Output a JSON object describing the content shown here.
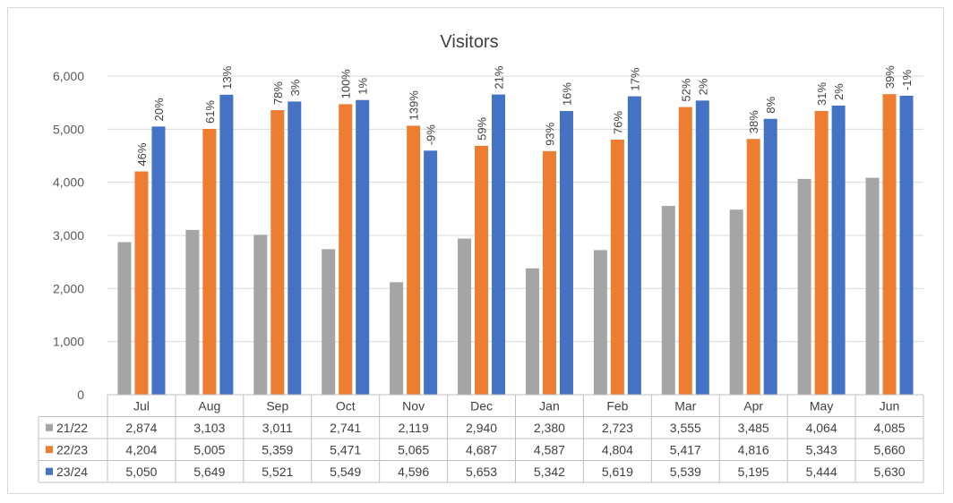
{
  "chart_data": {
    "type": "bar",
    "title": "Visitors",
    "categories": [
      "Jul",
      "Aug",
      "Sep",
      "Oct",
      "Nov",
      "Dec",
      "Jan",
      "Feb",
      "Mar",
      "Apr",
      "May",
      "Jun"
    ],
    "yticks": [
      "0",
      "1,000",
      "2,000",
      "3,000",
      "4,000",
      "5,000",
      "6,000"
    ],
    "ylim": [
      0,
      6000
    ],
    "grid": true,
    "legend": "data-table",
    "series": [
      {
        "name": "21/22",
        "color": "#a5a5a5",
        "values": [
          2874,
          3103,
          3011,
          2741,
          2119,
          2940,
          2380,
          2723,
          3555,
          3485,
          4064,
          4085
        ],
        "display": [
          "2,874",
          "3,103",
          "3,011",
          "2,741",
          "2,119",
          "2,940",
          "2,380",
          "2,723",
          "3,555",
          "3,485",
          "4,064",
          "4,085"
        ],
        "labels": [
          "",
          "",
          "",
          "",
          "",
          "",
          "",
          "",
          "",
          "",
          "",
          ""
        ]
      },
      {
        "name": "22/23",
        "color": "#ed7d31",
        "values": [
          4204,
          5005,
          5359,
          5471,
          5065,
          4687,
          4587,
          4804,
          5417,
          4816,
          5343,
          5660
        ],
        "display": [
          "4,204",
          "5,005",
          "5,359",
          "5,471",
          "5,065",
          "4,687",
          "4,587",
          "4,804",
          "5,417",
          "4,816",
          "5,343",
          "5,660"
        ],
        "labels": [
          "46%",
          "61%",
          "78%",
          "100%",
          "139%",
          "59%",
          "93%",
          "76%",
          "52%",
          "38%",
          "31%",
          "39%"
        ]
      },
      {
        "name": "23/24",
        "color": "#4472c4",
        "values": [
          5050,
          5649,
          5521,
          5549,
          4596,
          5653,
          5342,
          5619,
          5539,
          5195,
          5444,
          5630
        ],
        "display": [
          "5,050",
          "5,649",
          "5,521",
          "5,549",
          "4,596",
          "5,653",
          "5,342",
          "5,619",
          "5,539",
          "5,195",
          "5,444",
          "5,630"
        ],
        "labels": [
          "20%",
          "13%",
          "3%",
          "1%",
          "-9%",
          "21%",
          "16%",
          "17%",
          "2%",
          "8%",
          "2%",
          "-1%"
        ]
      }
    ]
  }
}
